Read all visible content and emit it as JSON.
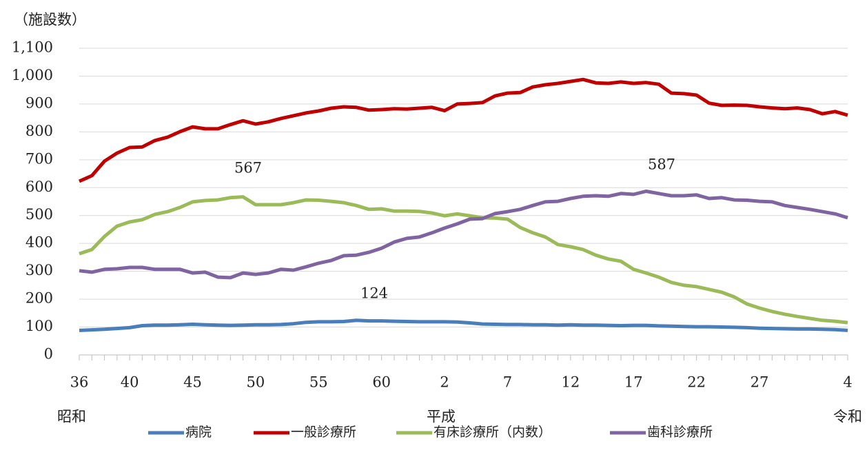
{
  "chart_data": {
    "type": "line",
    "y_axis_label": "（施設数）",
    "categories": [
      "36",
      null,
      null,
      null,
      "40",
      null,
      null,
      null,
      null,
      "45",
      null,
      null,
      null,
      null,
      "50",
      null,
      null,
      null,
      null,
      "55",
      null,
      null,
      null,
      null,
      "60",
      null,
      null,
      null,
      null,
      "2",
      null,
      null,
      null,
      null,
      "7",
      null,
      null,
      null,
      null,
      "12",
      null,
      null,
      null,
      null,
      "17",
      null,
      null,
      null,
      null,
      "22",
      null,
      null,
      null,
      null,
      "27",
      null,
      null,
      null,
      null,
      null,
      null,
      "4"
    ],
    "era_labels": [
      "昭和",
      "平成",
      "令和"
    ],
    "ylim": [
      0,
      1100
    ],
    "yticks": [
      0,
      100,
      200,
      300,
      400,
      500,
      600,
      700,
      800,
      900,
      {
        "value": 1000,
        "label": "1,000"
      },
      {
        "value": 1100,
        "label": "1,100"
      }
    ],
    "grid": true,
    "legend": "bottom",
    "series": [
      {
        "name": "病院",
        "color": "#4a7ebb",
        "values": [
          88,
          90,
          92,
          95,
          98,
          105,
          107,
          107,
          108,
          110,
          108,
          107,
          106,
          107,
          108,
          108,
          109,
          112,
          117,
          119,
          119,
          120,
          124,
          122,
          122,
          121,
          120,
          119,
          119,
          119,
          118,
          115,
          111,
          110,
          109,
          109,
          108,
          108,
          107,
          108,
          107,
          107,
          106,
          105,
          106,
          106,
          104,
          103,
          102,
          101,
          101,
          100,
          99,
          98,
          96,
          95,
          94,
          93,
          93,
          92,
          91,
          88
        ]
      },
      {
        "name": "一般診療所",
        "color": "#c00000",
        "values": [
          623,
          643,
          695,
          724,
          744,
          746,
          769,
          781,
          801,
          818,
          811,
          811,
          826,
          840,
          828,
          836,
          848,
          858,
          868,
          875,
          885,
          890,
          888,
          878,
          880,
          883,
          882,
          885,
          888,
          876,
          900,
          902,
          905,
          929,
          939,
          941,
          961,
          969,
          974,
          981,
          988,
          976,
          974,
          979,
          974,
          977,
          971,
          939,
          937,
          932,
          903,
          895,
          896,
          895,
          890,
          886,
          883,
          886,
          880,
          865,
          873,
          860
        ]
      },
      {
        "name": "有床診療所（内数）",
        "color": "#9bbb59",
        "values": [
          363,
          378,
          425,
          462,
          477,
          485,
          504,
          514,
          529,
          549,
          554,
          556,
          564,
          567,
          539,
          539,
          539,
          546,
          556,
          555,
          551,
          546,
          536,
          522,
          524,
          516,
          516,
          515,
          509,
          499,
          506,
          499,
          492,
          491,
          487,
          457,
          438,
          423,
          396,
          388,
          378,
          358,
          344,
          336,
          307,
          294,
          279,
          260,
          250,
          245,
          235,
          225,
          208,
          183,
          168,
          156,
          146,
          138,
          131,
          124,
          121,
          116
        ]
      },
      {
        "name": "歯科診療所",
        "color": "#8064a2",
        "values": [
          302,
          297,
          307,
          309,
          314,
          314,
          307,
          307,
          307,
          294,
          297,
          279,
          277,
          294,
          289,
          294,
          307,
          304,
          316,
          329,
          339,
          356,
          358,
          368,
          383,
          405,
          418,
          423,
          438,
          455,
          470,
          487,
          489,
          507,
          514,
          522,
          536,
          549,
          551,
          561,
          569,
          571,
          569,
          579,
          576,
          587,
          579,
          571,
          571,
          574,
          561,
          564,
          556,
          555,
          551,
          549,
          536,
          529,
          522,
          514,
          506,
          492
        ]
      }
    ],
    "annotations": [
      {
        "text": "567"
      },
      {
        "text": "587"
      },
      {
        "text": "124"
      }
    ]
  }
}
